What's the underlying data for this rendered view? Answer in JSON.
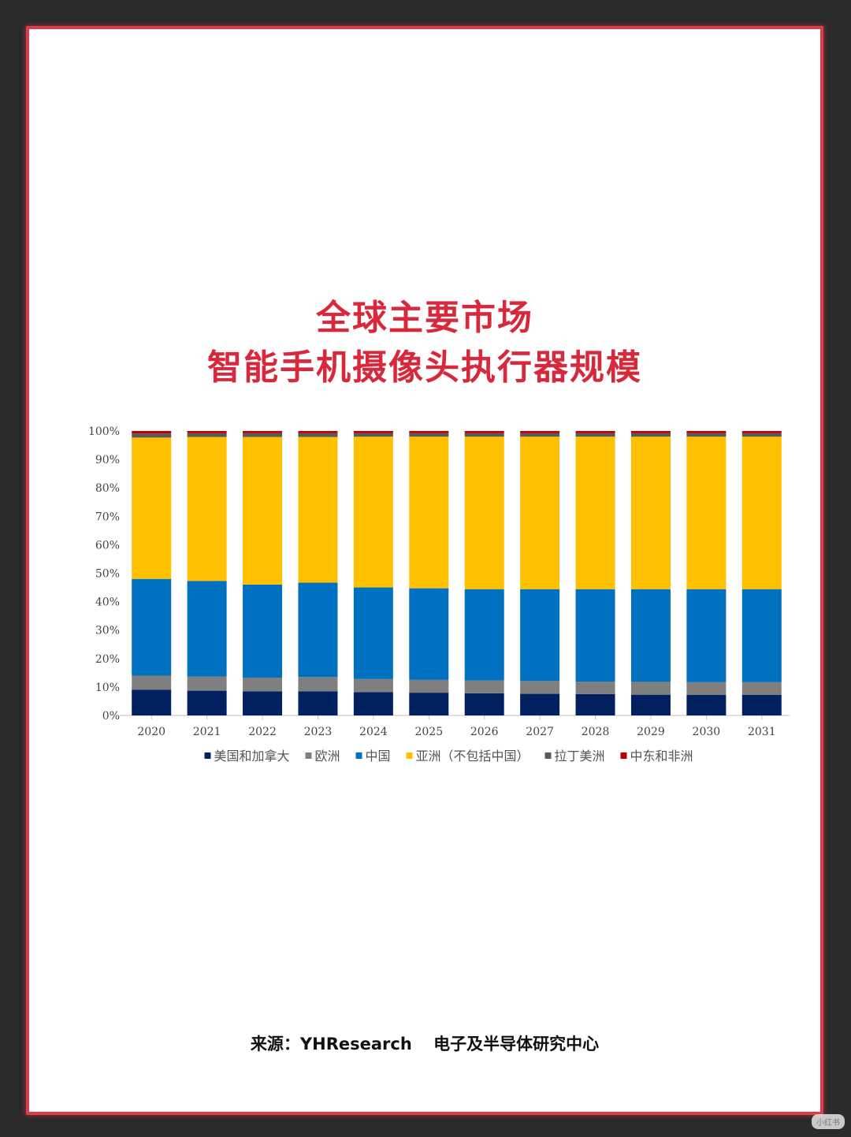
{
  "title": {
    "line1": "全球主要市场",
    "line2": "智能手机摄像头执行器规模"
  },
  "source": {
    "label": "来源：YHResearch",
    "org": "电子及半导体研究中心"
  },
  "watermark": "小红书",
  "chart_data": {
    "type": "bar",
    "stacked": true,
    "percent": true,
    "categories": [
      "2020",
      "2021",
      "2022",
      "2023",
      "2024",
      "2025",
      "2026",
      "2027",
      "2028",
      "2029",
      "2030",
      "2031"
    ],
    "ylim": [
      0,
      100
    ],
    "yticks": [
      "0%",
      "10%",
      "20%",
      "30%",
      "40%",
      "50%",
      "60%",
      "70%",
      "80%",
      "90%",
      "100%"
    ],
    "legend_position": "bottom",
    "grid": false,
    "series": [
      {
        "name": "美国和加拿大",
        "color": "#002060",
        "values": [
          9.0,
          8.7,
          8.5,
          8.5,
          8.2,
          8.0,
          7.8,
          7.6,
          7.5,
          7.3,
          7.2,
          7.2
        ]
      },
      {
        "name": "欧洲",
        "color": "#7f7f7f",
        "values": [
          5.0,
          5.0,
          4.8,
          5.0,
          4.6,
          4.5,
          4.5,
          4.5,
          4.4,
          4.5,
          4.5,
          4.5
        ]
      },
      {
        "name": "中国",
        "color": "#0070c0",
        "values": [
          34.0,
          33.6,
          32.7,
          33.2,
          32.2,
          32.2,
          32.1,
          32.3,
          32.5,
          32.6,
          32.7,
          32.7
        ]
      },
      {
        "name": "亚洲（不包括中国）",
        "color": "#ffc000",
        "values": [
          49.7,
          50.6,
          51.9,
          51.2,
          53.0,
          53.3,
          53.6,
          53.6,
          53.6,
          53.6,
          53.6,
          53.6
        ]
      },
      {
        "name": "拉丁美洲",
        "color": "#595959",
        "values": [
          1.4,
          1.3,
          1.3,
          1.3,
          1.2,
          1.2,
          1.2,
          1.2,
          1.2,
          1.2,
          1.2,
          1.2
        ]
      },
      {
        "name": "中东和非洲",
        "color": "#c00000",
        "values": [
          0.9,
          0.8,
          0.8,
          0.8,
          0.8,
          0.8,
          0.8,
          0.8,
          0.8,
          0.8,
          0.8,
          0.8
        ]
      }
    ]
  }
}
